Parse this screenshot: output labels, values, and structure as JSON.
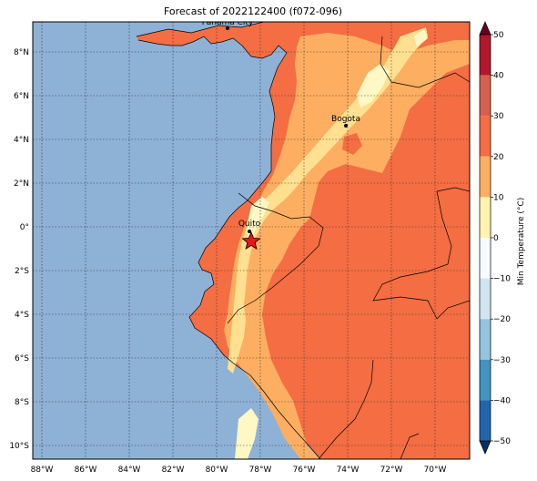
{
  "title": "Forecast of 2022122400 (f072-096)",
  "colorbar": {
    "label": "Min Temperature (°C)",
    "ticks": [
      "50",
      "40",
      "30",
      "20",
      "10",
      "0",
      "−10",
      "−20",
      "−30",
      "−40",
      "−50"
    ],
    "colors": [
      "#67001f",
      "#b2182b",
      "#d6604d",
      "#f4a582",
      "#fddbc7",
      "#ffffff",
      "#d1e5f0",
      "#92c5de",
      "#4393c3",
      "#2166ac",
      "#053061"
    ]
  },
  "axes": {
    "lon_labels": [
      "88°W",
      "86°W",
      "84°W",
      "82°W",
      "80°W",
      "78°W",
      "76°W",
      "74°W",
      "72°W",
      "70°W"
    ],
    "lat_labels": [
      "8°N",
      "6°N",
      "4°N",
      "2°N",
      "0°",
      "2°S",
      "4°S",
      "6°S",
      "8°S",
      "10°S"
    ]
  },
  "cities": [
    {
      "name": "Panama City"
    },
    {
      "name": "Bogota"
    },
    {
      "name": "Quito"
    }
  ],
  "palette": {
    "ocean": "#8eb1d6",
    "c20_30": "#f46d43",
    "c10_20": "#fdae61",
    "c0_10": "#fee090",
    "c_pale": "#fff7c4"
  }
}
